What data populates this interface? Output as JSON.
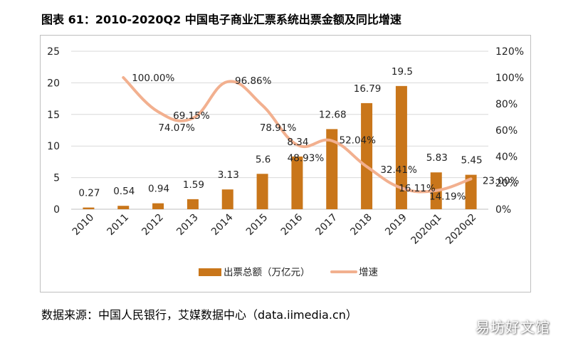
{
  "title": "图表 61：2010-2020Q2 中国电子商业汇票系统出票金额及同比增速",
  "source": "数据来源：中国人民银行，艾媒数据中心（data.iimedia.cn）",
  "watermark": "易坊好文馆",
  "chart_data": {
    "type": "bar+line",
    "title": "2010-2020Q2 中国电子商业汇票系统出票金额及同比增速",
    "categories": [
      "2010",
      "2011",
      "2012",
      "2013",
      "2014",
      "2015",
      "2016",
      "2017",
      "2018",
      "2019",
      "2020q1",
      "2020q2"
    ],
    "series": [
      {
        "name": "出票总额（万亿元）",
        "type": "bar",
        "axis": "left",
        "color": "#C9761A",
        "values": [
          0.27,
          0.54,
          0.94,
          1.59,
          3.13,
          5.6,
          8.34,
          12.68,
          16.79,
          19.5,
          5.83,
          5.45
        ],
        "labels": [
          "0.27",
          "0.54",
          "0.94",
          "1.59",
          "3.13",
          "5.6",
          "8.34",
          "12.68",
          "16.79",
          "19.5",
          "5.83",
          "5.45"
        ]
      },
      {
        "name": "增速",
        "type": "line",
        "axis": "right",
        "color": "#F2B08F",
        "values": [
          null,
          100.0,
          74.07,
          69.15,
          96.86,
          78.91,
          48.93,
          52.04,
          32.41,
          16.11,
          14.19,
          23.0
        ],
        "labels": [
          "",
          "100.00%",
          "74.07%",
          "69.15%",
          "96.86%",
          "78.91%",
          "48.93%",
          "52.04%",
          "32.41%",
          "16.11%",
          "14.19%",
          "23.00%"
        ]
      }
    ],
    "y_left": {
      "min": 0,
      "max": 25,
      "ticks": [
        "0",
        "5",
        "10",
        "15",
        "20",
        "25"
      ]
    },
    "y_right": {
      "min": 0,
      "max": 120,
      "ticks": [
        "0%",
        "20%",
        "40%",
        "60%",
        "80%",
        "100%",
        "120%"
      ]
    },
    "gridlines": true,
    "legend_position": "bottom"
  }
}
